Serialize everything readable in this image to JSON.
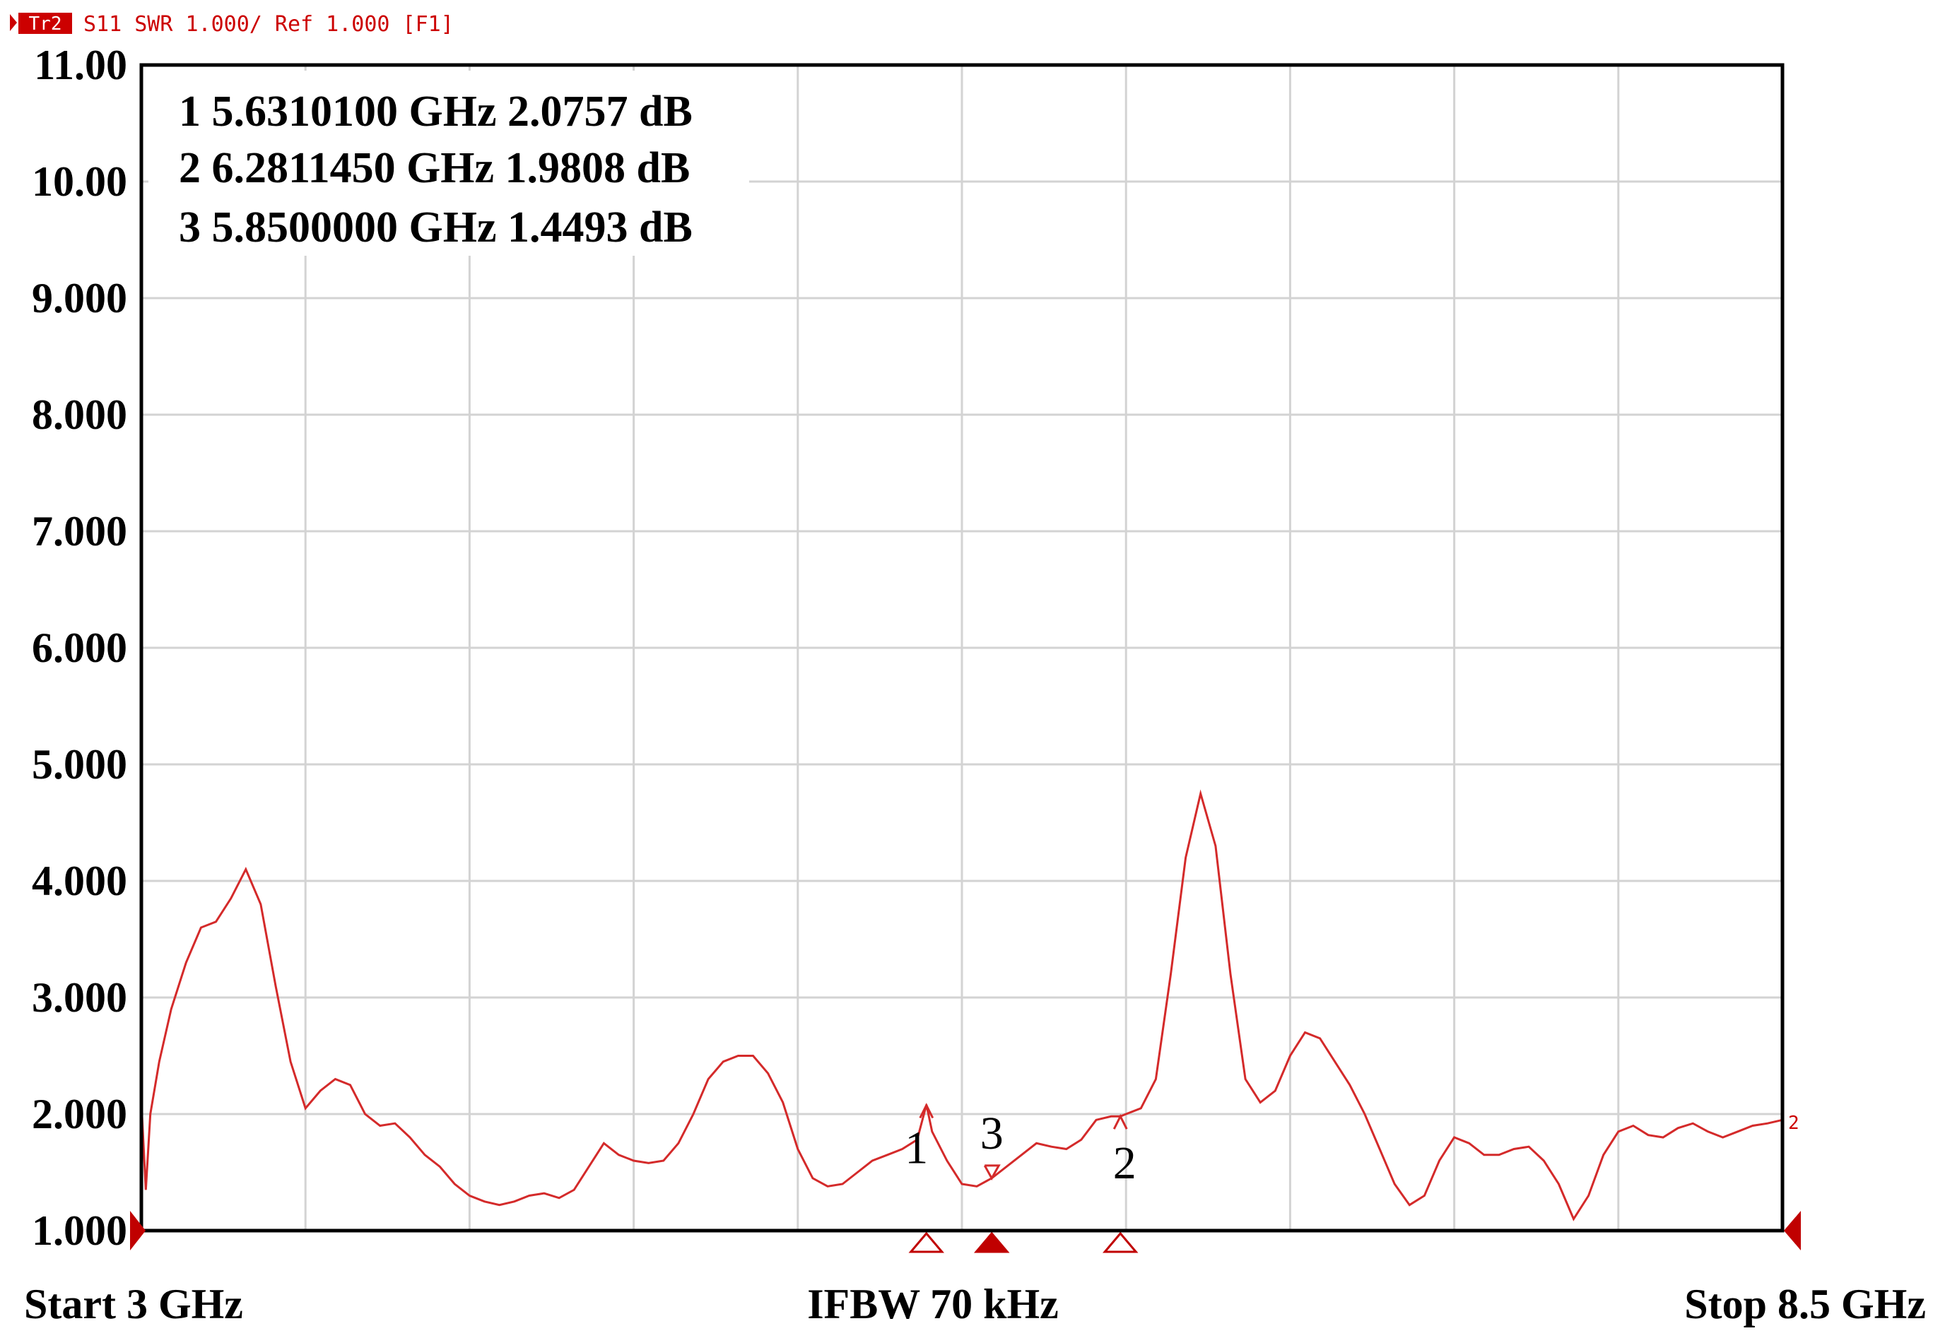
{
  "header": {
    "trace_badge": "Tr2",
    "trace_info": "S11 SWR 1.000/ Ref 1.000 [F1]"
  },
  "footer": {
    "start": "Start 3 GHz",
    "center": "IFBW 70 kHz",
    "stop": "Stop 8.5 GHz"
  },
  "markers": [
    {
      "label": "1",
      "readout": "1 5.6310100 GHz 2.0757 dB",
      "x": 5.631,
      "y": 2.0757
    },
    {
      "label": "2",
      "readout": "2 6.2811450 GHz 1.9808 dB",
      "x": 6.281145,
      "y": 1.9808
    },
    {
      "label": "3",
      "readout": "3 5.8500000 GHz 1.4493 dB",
      "x": 5.85,
      "y": 1.4493
    }
  ],
  "end_marker_label": "2",
  "colors": {
    "trace": "#d42a2a",
    "grid": "#d3d3d3",
    "marker": "#c00000",
    "frame": "#000000"
  },
  "chart_data": {
    "type": "line",
    "xlim": [
      3.0,
      8.5
    ],
    "ylim": [
      1.0,
      11.0
    ],
    "x_gridlines": 10,
    "y_ticks": [
      "1.000",
      "2.000",
      "3.000",
      "4.000",
      "5.000",
      "6.000",
      "7.000",
      "8.000",
      "9.000",
      "10.00",
      "11.00"
    ],
    "grid": true,
    "series": [
      {
        "x": [
          3.0,
          3.015,
          3.03,
          3.06,
          3.1,
          3.15,
          3.2,
          3.25,
          3.3,
          3.35,
          3.4,
          3.45,
          3.5,
          3.55,
          3.6,
          3.65,
          3.7,
          3.75,
          3.8,
          3.85,
          3.9,
          3.95,
          4.0,
          4.05,
          4.1,
          4.15,
          4.2,
          4.25,
          4.3,
          4.35,
          4.4,
          4.45,
          4.5,
          4.55,
          4.6,
          4.65,
          4.7,
          4.75,
          4.8,
          4.85,
          4.9,
          4.95,
          5.0,
          5.05,
          5.1,
          5.15,
          5.2,
          5.25,
          5.3,
          5.35,
          5.4,
          5.45,
          5.5,
          5.55,
          5.6,
          5.631,
          5.65,
          5.7,
          5.75,
          5.8,
          5.85,
          5.9,
          5.95,
          6.0,
          6.05,
          6.1,
          6.15,
          6.2,
          6.25,
          6.281,
          6.3,
          6.35,
          6.4,
          6.45,
          6.5,
          6.55,
          6.6,
          6.65,
          6.7,
          6.75,
          6.8,
          6.85,
          6.9,
          6.95,
          7.0,
          7.05,
          7.1,
          7.15,
          7.2,
          7.25,
          7.3,
          7.35,
          7.4,
          7.45,
          7.5,
          7.55,
          7.6,
          7.65,
          7.7,
          7.75,
          7.8,
          7.85,
          7.9,
          7.95,
          8.0,
          8.05,
          8.1,
          8.15,
          8.2,
          8.25,
          8.3,
          8.35,
          8.4,
          8.45,
          8.5
        ],
        "y": [
          2.1,
          1.35,
          2.0,
          2.45,
          2.9,
          3.3,
          3.6,
          3.65,
          3.85,
          4.1,
          3.8,
          3.1,
          2.45,
          2.05,
          2.2,
          2.3,
          2.25,
          2.0,
          1.9,
          1.92,
          1.8,
          1.65,
          1.55,
          1.4,
          1.3,
          1.25,
          1.22,
          1.25,
          1.3,
          1.32,
          1.28,
          1.35,
          1.55,
          1.75,
          1.65,
          1.6,
          1.58,
          1.6,
          1.75,
          2.0,
          2.3,
          2.45,
          2.5,
          2.5,
          2.35,
          2.1,
          1.7,
          1.45,
          1.38,
          1.4,
          1.5,
          1.6,
          1.65,
          1.7,
          1.78,
          2.08,
          1.85,
          1.6,
          1.4,
          1.38,
          1.45,
          1.55,
          1.65,
          1.75,
          1.72,
          1.7,
          1.78,
          1.95,
          1.98,
          1.98,
          2.0,
          2.05,
          2.3,
          3.2,
          4.2,
          4.75,
          4.3,
          3.2,
          2.3,
          2.1,
          2.2,
          2.5,
          2.7,
          2.65,
          2.45,
          2.25,
          2.0,
          1.7,
          1.4,
          1.22,
          1.3,
          1.6,
          1.8,
          1.75,
          1.65,
          1.65,
          1.7,
          1.72,
          1.6,
          1.4,
          1.1,
          1.3,
          1.65,
          1.85,
          1.9,
          1.82,
          1.8,
          1.88,
          1.92,
          1.85,
          1.8,
          1.85,
          1.9,
          1.92,
          1.95
        ]
      }
    ]
  }
}
